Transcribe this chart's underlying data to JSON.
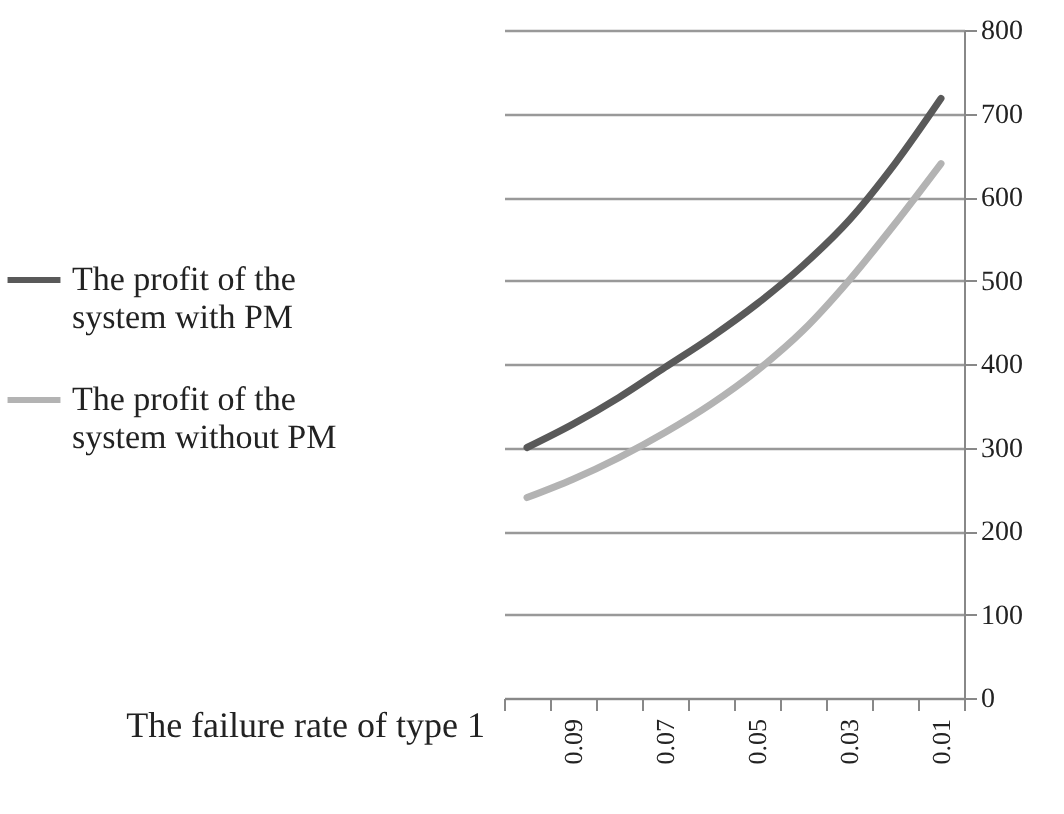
{
  "chart_data": {
    "type": "line",
    "xlabel": "The failure rate of type 1",
    "categories": [
      null,
      "0.09",
      null,
      "0.07",
      null,
      "0.05",
      null,
      "0.03",
      null,
      "0.01"
    ],
    "series": [
      {
        "name": "The profit of the system with PM",
        "color": "#595959",
        "values": [
          300,
          328,
          360,
          396,
          432,
          472,
          518,
          572,
          640,
          718
        ]
      },
      {
        "name": "The profit of the system without PM",
        "color": "#b3b3b3",
        "values": [
          240,
          262,
          288,
          318,
          352,
          392,
          440,
          500,
          568,
          640
        ]
      }
    ],
    "ylim": [
      0,
      800
    ],
    "yticks": [
      0,
      100,
      200,
      300,
      400,
      500,
      600,
      700,
      800
    ],
    "grid": "y",
    "legend": "left",
    "marker": "none",
    "line_style": "solid"
  }
}
